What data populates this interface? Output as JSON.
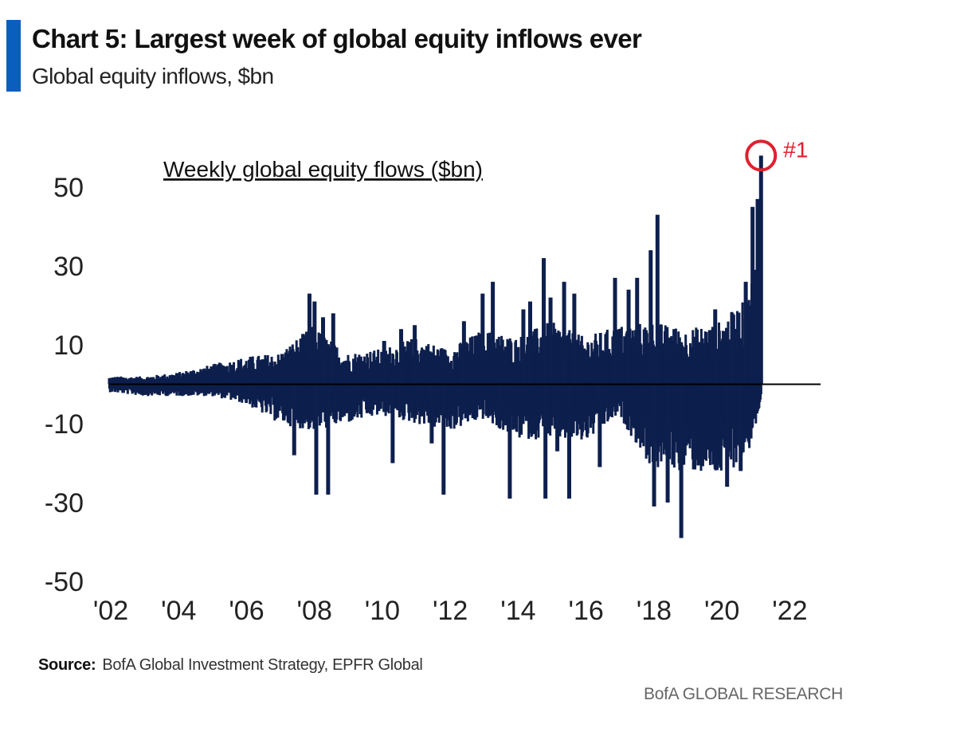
{
  "header": {
    "title": "Chart 5: Largest week of global equity inflows ever",
    "subtitle": "Global equity inflows, $bn"
  },
  "footer": {
    "source_label": "Source:",
    "source_text": "BofA Global Investment Strategy, EPFR Global",
    "brand": "BofA GLOBAL RESEARCH"
  },
  "colors": {
    "accent": "#0A5FBE",
    "bars": "#0D1F4D",
    "highlight": "#E0202E",
    "zero_line": "#000000"
  },
  "chart_data": {
    "type": "bar",
    "title": "Weekly global equity flows ($bn)",
    "annotation": "#1",
    "xlabel": "",
    "ylabel": "",
    "xlim": [
      2002,
      2023
    ],
    "ylim": [
      -50,
      60
    ],
    "y_ticks": [
      50,
      30,
      10,
      -10,
      -30,
      -50
    ],
    "y_tick_labels": [
      "50",
      "30",
      "10",
      "-10",
      "-30",
      "-50"
    ],
    "x_ticks": [
      2002,
      2004,
      2006,
      2008,
      2010,
      2012,
      2014,
      2016,
      2018,
      2020,
      2022
    ],
    "x_tick_labels": [
      "'02",
      "'04",
      "'06",
      "'08",
      "'10",
      "'12",
      "'14",
      "'16",
      "'18",
      "'20",
      "'22"
    ],
    "grid": false,
    "legend": "none",
    "series_name": "Weekly global equity flows ($bn)",
    "envelope": [
      {
        "x": 2002.0,
        "max": 2,
        "min": -2
      },
      {
        "x": 2003.0,
        "max": 2,
        "min": -3
      },
      {
        "x": 2004.0,
        "max": 3,
        "min": -3
      },
      {
        "x": 2005.0,
        "max": 5,
        "min": -3
      },
      {
        "x": 2006.0,
        "max": 7,
        "min": -5
      },
      {
        "x": 2007.0,
        "max": 8,
        "min": -10
      },
      {
        "x": 2008.0,
        "max": 15,
        "min": -12
      },
      {
        "x": 2009.0,
        "max": 8,
        "min": -10
      },
      {
        "x": 2010.0,
        "max": 9,
        "min": -8
      },
      {
        "x": 2011.0,
        "max": 12,
        "min": -10
      },
      {
        "x": 2012.0,
        "max": 9,
        "min": -12
      },
      {
        "x": 2013.0,
        "max": 14,
        "min": -9
      },
      {
        "x": 2014.0,
        "max": 12,
        "min": -14
      },
      {
        "x": 2015.0,
        "max": 16,
        "min": -14
      },
      {
        "x": 2016.0,
        "max": 12,
        "min": -15
      },
      {
        "x": 2017.0,
        "max": 15,
        "min": -8
      },
      {
        "x": 2018.0,
        "max": 16,
        "min": -22
      },
      {
        "x": 2019.0,
        "max": 14,
        "min": -22
      },
      {
        "x": 2020.0,
        "max": 16,
        "min": -24
      },
      {
        "x": 2020.8,
        "max": 22,
        "min": -18
      },
      {
        "x": 2021.2,
        "max": 40,
        "min": -6
      }
    ],
    "spikes": [
      {
        "x": 2007.45,
        "value": -18
      },
      {
        "x": 2007.9,
        "value": 23
      },
      {
        "x": 2008.05,
        "value": 21
      },
      {
        "x": 2008.1,
        "value": -28
      },
      {
        "x": 2008.3,
        "value": 17
      },
      {
        "x": 2008.45,
        "value": -28
      },
      {
        "x": 2008.6,
        "value": 18
      },
      {
        "x": 2010.1,
        "value": 11
      },
      {
        "x": 2010.35,
        "value": -20
      },
      {
        "x": 2010.6,
        "value": 14
      },
      {
        "x": 2011.0,
        "value": 15
      },
      {
        "x": 2011.5,
        "value": -15
      },
      {
        "x": 2011.85,
        "value": -28
      },
      {
        "x": 2012.45,
        "value": 16
      },
      {
        "x": 2013.0,
        "value": 23
      },
      {
        "x": 2013.3,
        "value": 26
      },
      {
        "x": 2013.5,
        "value": -11
      },
      {
        "x": 2013.8,
        "value": -29
      },
      {
        "x": 2014.2,
        "value": 19
      },
      {
        "x": 2014.4,
        "value": 21
      },
      {
        "x": 2014.8,
        "value": 32
      },
      {
        "x": 2014.85,
        "value": -29
      },
      {
        "x": 2015.0,
        "value": 22
      },
      {
        "x": 2015.2,
        "value": -17
      },
      {
        "x": 2015.4,
        "value": 26
      },
      {
        "x": 2015.55,
        "value": -29
      },
      {
        "x": 2015.7,
        "value": 23
      },
      {
        "x": 2016.45,
        "value": -21
      },
      {
        "x": 2016.9,
        "value": 27
      },
      {
        "x": 2017.3,
        "value": 24
      },
      {
        "x": 2017.55,
        "value": 27
      },
      {
        "x": 2017.95,
        "value": 34
      },
      {
        "x": 2018.05,
        "value": -31
      },
      {
        "x": 2018.15,
        "value": 43
      },
      {
        "x": 2018.45,
        "value": -30
      },
      {
        "x": 2018.65,
        "value": 14
      },
      {
        "x": 2018.85,
        "value": -39
      },
      {
        "x": 2019.85,
        "value": 19
      },
      {
        "x": 2020.2,
        "value": -26
      },
      {
        "x": 2020.35,
        "value": 18
      },
      {
        "x": 2020.6,
        "value": -22
      },
      {
        "x": 2020.75,
        "value": 26
      },
      {
        "x": 2020.95,
        "value": 45
      },
      {
        "x": 2021.1,
        "value": 47
      },
      {
        "x": 2021.2,
        "value": 58
      }
    ]
  }
}
